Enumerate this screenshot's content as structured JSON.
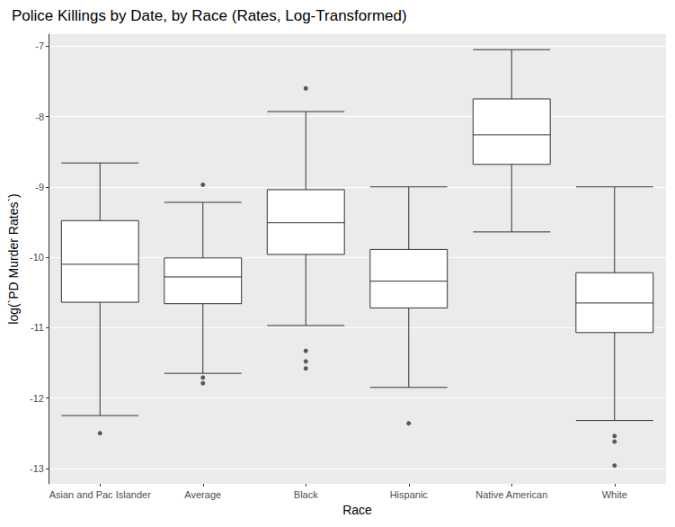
{
  "chart_data": {
    "type": "boxplot",
    "title": "Police Killings by Date, by Race (Rates, Log-Transformed)",
    "x_label": "Race",
    "y_label": "log(`PD Murder Rates`)",
    "categories": [
      "Asian and Pac Islander",
      "Average",
      "Black",
      "Hispanic",
      "Native American",
      "White"
    ],
    "values": [
      [
        -12.25,
        -10.64,
        -10.1,
        -9.48,
        -8.66
      ],
      [
        -11.65,
        -10.66,
        -10.28,
        -10.01,
        -9.22
      ],
      [
        -10.97,
        -9.96,
        -9.51,
        -9.04,
        -7.93
      ],
      [
        -11.85,
        -10.72,
        -10.34,
        -9.89,
        -9.0
      ],
      [
        -9.64,
        -8.68,
        -8.26,
        -7.75,
        -7.05
      ],
      [
        -12.32,
        -11.07,
        -10.65,
        -10.22,
        -9.0
      ]
    ],
    "outliers": [
      [
        -12.5
      ],
      [
        -8.97,
        -11.71,
        -11.79
      ],
      [
        -7.6,
        -11.33,
        -11.48,
        -11.58
      ],
      [
        -12.36
      ],
      [],
      [
        -12.54,
        -12.62,
        -12.96
      ]
    ],
    "color": "#333333",
    "ylim": [
      -13.22,
      -6.83
    ],
    "yticks": [
      -13,
      -12,
      -11,
      -10,
      -9,
      -8,
      -7
    ],
    "grid": true
  }
}
